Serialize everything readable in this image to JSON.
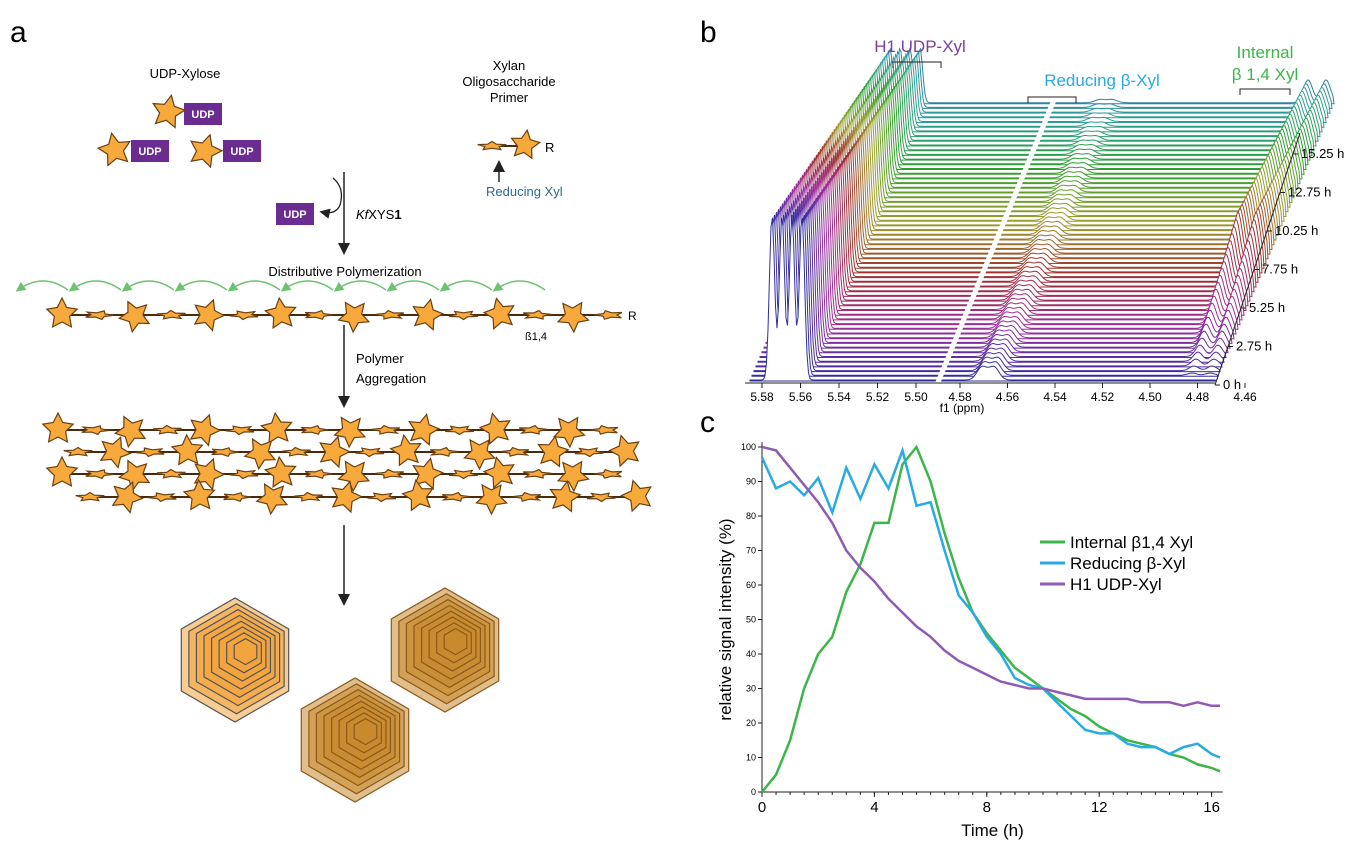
{
  "panel_a": {
    "label": "a",
    "udp_xylose": "UDP-Xylose",
    "udp_tags": [
      "UDP",
      "UDP",
      "UDP",
      "UDP"
    ],
    "primer_title": [
      "Xylan",
      "Oligosaccharide",
      "Primer"
    ],
    "primer_r": "R",
    "reducing_xyl": "Reducing Xyl",
    "enzyme_prefix": "Kf",
    "enzyme_name": "XYS",
    "enzyme_number": "1",
    "polymerization": "Distributive Polymerization",
    "chain_r": "R",
    "linkage": "ß1,4",
    "aggregation": [
      "Polymer",
      "Aggregation"
    ]
  },
  "panel_b": {
    "label": "b",
    "peak_labels": {
      "udp": "H1 UDP-Xyl",
      "reducing": "Reducing β-Xyl",
      "internal": [
        "Internal",
        "β 1,4 Xyl"
      ]
    },
    "ppm_ticks_left": [
      "5.58",
      "5.56",
      "5.54",
      "5.52",
      "5.50"
    ],
    "ppm_ticks_right": [
      "4.58",
      "4.56",
      "4.54",
      "4.52",
      "4.50",
      "4.48",
      "4.46"
    ],
    "x_label": "f1 (ppm)",
    "time_labels": [
      "0 h",
      "2.75 h",
      "5.25 h",
      "7.75 h",
      "10.25 h",
      "12.75 h",
      "15.25 h"
    ]
  },
  "chart_data": {
    "type": "line",
    "panel_label": "c",
    "x_label": "Time (h)",
    "y_label": "relative signal intensity (%)",
    "x": [
      0,
      0.5,
      1,
      1.5,
      2,
      2.5,
      3,
      3.5,
      4,
      4.5,
      5,
      5.5,
      6,
      6.5,
      7,
      7.5,
      8,
      8.5,
      9,
      9.5,
      10,
      10.5,
      11,
      11.5,
      12,
      12.5,
      13,
      13.5,
      14,
      14.5,
      15,
      15.5,
      16,
      16.3
    ],
    "xlim": [
      0,
      16.4
    ],
    "xticks": [
      0,
      4,
      8,
      12,
      16
    ],
    "ylim": [
      0,
      100
    ],
    "yticks": [
      0,
      10,
      20,
      30,
      40,
      50,
      60,
      70,
      80,
      90,
      100
    ],
    "legend": "right",
    "series": [
      {
        "name": "Internal β1,4 Xyl",
        "color": "#3cb54a",
        "values": [
          0,
          5,
          15,
          30,
          40,
          45,
          58,
          66,
          78,
          78,
          95,
          100,
          90,
          75,
          62,
          52,
          46,
          41,
          36,
          33,
          30,
          27,
          24,
          22,
          19,
          17,
          15,
          14,
          13,
          11,
          10,
          8,
          7,
          6
        ]
      },
      {
        "name": "Reducing β-Xyl",
        "color": "#2aaae2",
        "values": [
          97,
          88,
          90,
          86,
          91,
          81,
          94,
          85,
          95,
          88,
          99,
          83,
          84,
          70,
          57,
          52,
          45,
          40,
          33,
          31,
          30,
          26,
          22,
          18,
          17,
          17,
          14,
          13,
          13,
          11,
          13,
          14,
          11,
          10
        ]
      },
      {
        "name": "H1 UDP-Xyl",
        "color": "#8e5cb5",
        "values": [
          100,
          99,
          94,
          89,
          84,
          78,
          70,
          65,
          61,
          56,
          52,
          48,
          45,
          41,
          38,
          36,
          34,
          32,
          31,
          30,
          30,
          29,
          28,
          27,
          27,
          27,
          27,
          26,
          26,
          26,
          25,
          26,
          25,
          25
        ]
      }
    ]
  }
}
